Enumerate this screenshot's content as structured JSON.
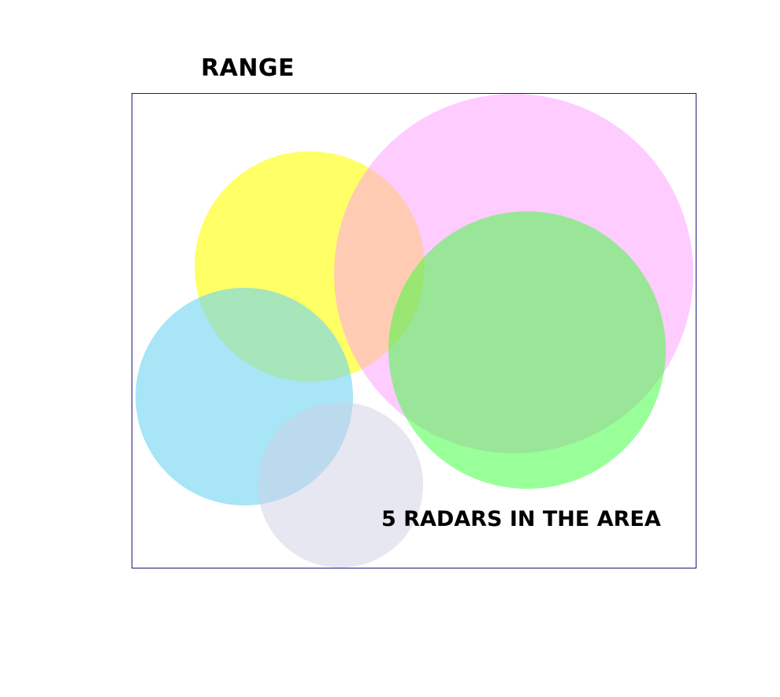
{
  "title": "RANGE",
  "caption": "5 RADARS IN THE AREA",
  "colors": {
    "border": "#1a1a7a",
    "yellow": "#ffff66",
    "pink": "#ffccff",
    "green": "#99ff99",
    "blue": "#a7e3f6",
    "lavender": "#e6e6f0"
  }
}
